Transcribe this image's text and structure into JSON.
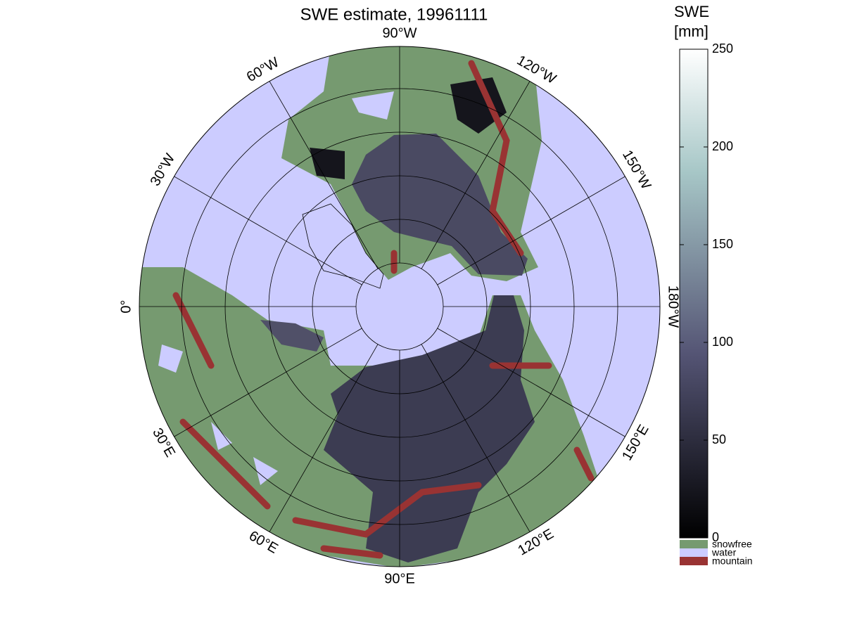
{
  "chart_data": {
    "type": "polar-map",
    "title": "SWE estimate, 19961111",
    "lon_ticks": [
      {
        "value": -90,
        "label": "90°W"
      },
      {
        "value": -120,
        "label": "120°W"
      },
      {
        "value": -150,
        "label": "150°W"
      },
      {
        "value": -180,
        "label": "180°W"
      },
      {
        "value": 150,
        "label": "150°E"
      },
      {
        "value": 120,
        "label": "120°E"
      },
      {
        "value": 90,
        "label": "90°E"
      },
      {
        "value": 60,
        "label": "60°E"
      },
      {
        "value": 30,
        "label": "30°E"
      },
      {
        "value": 0,
        "label": "0°"
      },
      {
        "value": -30,
        "label": "30°W"
      },
      {
        "value": -60,
        "label": "60°W"
      }
    ],
    "colorbar": {
      "label": [
        "SWE",
        "[mm]"
      ],
      "lim": [
        0,
        250
      ],
      "ticks": [
        0,
        50,
        100,
        150,
        200,
        250
      ]
    },
    "categories": [
      {
        "name": "snowfree",
        "color": "#769a70"
      },
      {
        "name": "water",
        "color": "#ccccff"
      },
      {
        "name": "mountain",
        "color": "#993333"
      }
    ]
  }
}
